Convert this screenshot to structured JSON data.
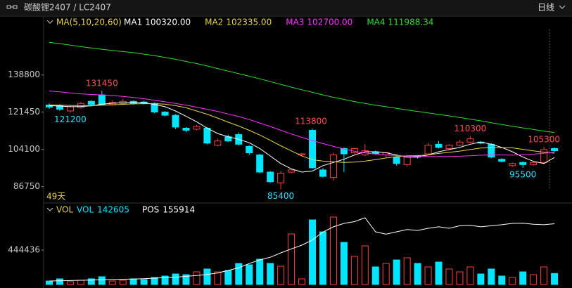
{
  "header": {
    "title": "碳酸锂2407 / LC2407",
    "period": "日线"
  },
  "chart_data": [
    {
      "type": "candlestick",
      "legend_title": "MA(5,10,20,60)",
      "days_label": "49天",
      "ylim": [
        84000,
        160000
      ],
      "yticks": [
        86750,
        104100,
        121450,
        138800
      ],
      "up_color": "#ff4040",
      "down_color": "#00e5ff",
      "open": [
        124800,
        124500,
        122000,
        123500,
        126500,
        129500,
        125000,
        125500,
        126500,
        126200,
        125500,
        121500,
        120000,
        114000,
        113500,
        114000,
        106000,
        110000,
        111000,
        105500,
        101500,
        93500,
        88500,
        93500,
        101500,
        113000,
        94500,
        91000,
        104500,
        102500,
        101500,
        103000,
        101500,
        100500,
        97000,
        101000,
        102000,
        106500,
        104500,
        106000,
        107500,
        107500,
        106500,
        99500,
        96500,
        98000,
        97000,
        98000,
        104500
      ],
      "high": [
        125500,
        125200,
        124800,
        126200,
        127000,
        131450,
        127000,
        127500,
        127000,
        126800,
        126000,
        122000,
        120500,
        114500,
        115500,
        114500,
        109000,
        111000,
        112000,
        106000,
        102000,
        94000,
        94000,
        95000,
        102500,
        113800,
        95500,
        102500,
        105000,
        104800,
        106500,
        103500,
        103000,
        101000,
        101500,
        101500,
        107000,
        108000,
        106500,
        108500,
        110300,
        108000,
        107000,
        100000,
        98000,
        98500,
        98500,
        105300,
        105000
      ],
      "low": [
        123000,
        122000,
        121200,
        123000,
        124500,
        124500,
        124500,
        125000,
        125000,
        125000,
        121000,
        119500,
        113500,
        112000,
        113000,
        106500,
        105500,
        107500,
        106000,
        101500,
        93000,
        88500,
        85400,
        93000,
        101000,
        95000,
        91000,
        89500,
        93500,
        102000,
        101000,
        101500,
        100500,
        96500,
        96000,
        99800,
        101500,
        104500,
        104000,
        105500,
        107000,
        106500,
        100000,
        98000,
        96000,
        95500,
        96500,
        97500,
        103000
      ],
      "close": [
        123800,
        122800,
        124000,
        125500,
        125000,
        125000,
        126000,
        126500,
        125500,
        125500,
        121500,
        120000,
        114500,
        113000,
        114800,
        107000,
        108000,
        108000,
        106500,
        102500,
        93500,
        89000,
        93000,
        94500,
        102000,
        95500,
        91500,
        101500,
        102000,
        104500,
        103500,
        102000,
        102500,
        97500,
        100500,
        100500,
        106000,
        105000,
        106000,
        107500,
        109000,
        107000,
        100500,
        98500,
        97500,
        97000,
        98000,
        104000,
        103500
      ],
      "series": [
        {
          "name": "MA1",
          "value_label": "100320.00",
          "color": "#ffffff",
          "values": [
            124500,
            124300,
            124000,
            124100,
            124400,
            125200,
            125600,
            125800,
            126000,
            125900,
            125000,
            124000,
            122000,
            119500,
            117000,
            114000,
            111500,
            110000,
            108800,
            107200,
            104500,
            101000,
            97500,
            95000,
            93500,
            94000,
            96500,
            98000,
            99500,
            101500,
            103000,
            103000,
            102500,
            101500,
            100500,
            100500,
            101500,
            103000,
            104000,
            105000,
            106500,
            107500,
            106500,
            105000,
            103000,
            100500,
            98500,
            97500,
            100320
          ]
        },
        {
          "name": "MA2",
          "value_label": "102335.00",
          "color": "#e8d44d",
          "values": [
            124800,
            124700,
            124600,
            124500,
            124500,
            124700,
            124900,
            125100,
            125300,
            125400,
            125400,
            125200,
            124500,
            123500,
            122000,
            120500,
            118700,
            116800,
            115000,
            113000,
            110800,
            108300,
            105800,
            103400,
            101000,
            99300,
            98600,
            98300,
            98000,
            98200,
            98600,
            99300,
            100100,
            100700,
            101100,
            101200,
            101500,
            102200,
            102700,
            103300,
            104000,
            104700,
            104900,
            104900,
            104800,
            104100,
            103400,
            102800,
            102335
          ]
        },
        {
          "name": "MA3",
          "value_label": "102700.00",
          "color": "#ff33ff",
          "values": [
            131300,
            130900,
            130400,
            130000,
            129700,
            129500,
            129200,
            128800,
            128300,
            127700,
            127000,
            126300,
            125500,
            124700,
            123800,
            122800,
            121800,
            120600,
            119400,
            118000,
            116400,
            114800,
            113000,
            111300,
            109700,
            108200,
            106800,
            105500,
            104300,
            103200,
            102400,
            101900,
            101500,
            101200,
            101000,
            100900,
            100800,
            100800,
            100800,
            100900,
            101100,
            101400,
            101500,
            101500,
            101400,
            101600,
            101900,
            102300,
            102700
          ]
        },
        {
          "name": "MA4",
          "value_label": "111988.34",
          "color": "#33dd33",
          "values": [
            154000,
            153400,
            152700,
            152000,
            151400,
            150800,
            150200,
            149700,
            149200,
            148500,
            147800,
            147000,
            146100,
            145100,
            144100,
            143000,
            141800,
            140600,
            139400,
            138200,
            137000,
            135700,
            134400,
            133100,
            131900,
            130700,
            129500,
            128400,
            127400,
            126400,
            125500,
            124700,
            124000,
            123200,
            122500,
            121800,
            121100,
            120400,
            119700,
            119000,
            118200,
            117400,
            116500,
            115700,
            114900,
            114100,
            113400,
            112600,
            111988.34
          ]
        }
      ]
    },
    {
      "type": "bar",
      "legend_title": "VOL",
      "ylim": [
        0,
        880000
      ],
      "yticks": [
        444436
      ],
      "y2lim": [
        40000,
        170000
      ],
      "series": [
        {
          "name": "VOL",
          "value_label": "142605",
          "color": "#00e5ff",
          "values": [
            45000,
            73000,
            36000,
            54000,
            73000,
            100000,
            45000,
            54000,
            73000,
            63000,
            91000,
            109000,
            136000,
            127000,
            163000,
            200000,
            163000,
            181000,
            272000,
            254000,
            327000,
            272000,
            236000,
            653000,
            73000,
            834000,
            680000,
            871000,
            544000,
            363000,
            499000,
            227000,
            272000,
            317000,
            345000,
            272000,
            227000,
            290000,
            200000,
            163000,
            227000,
            136000,
            200000,
            109000,
            91000,
            163000,
            127000,
            227000,
            142605
          ]
        },
        {
          "name": "POS",
          "value_label": "155914",
          "color": "#ffffff",
          "axis": "y2",
          "values": [
            46700,
            47000,
            47500,
            48000,
            48500,
            49000,
            49500,
            50000,
            50500,
            51000,
            52000,
            53000,
            54000,
            55500,
            57000,
            59000,
            62000,
            66800,
            72000,
            80000,
            86900,
            92000,
            100300,
            108000,
            115000,
            125000,
            140000,
            150000,
            156600,
            160000,
            167300,
            140500,
            136000,
            140500,
            145000,
            143000,
            147200,
            150000,
            147200,
            152000,
            153000,
            150000,
            152000,
            154000,
            156600,
            157000,
            155000,
            154000,
            155914
          ]
        }
      ]
    }
  ]
}
